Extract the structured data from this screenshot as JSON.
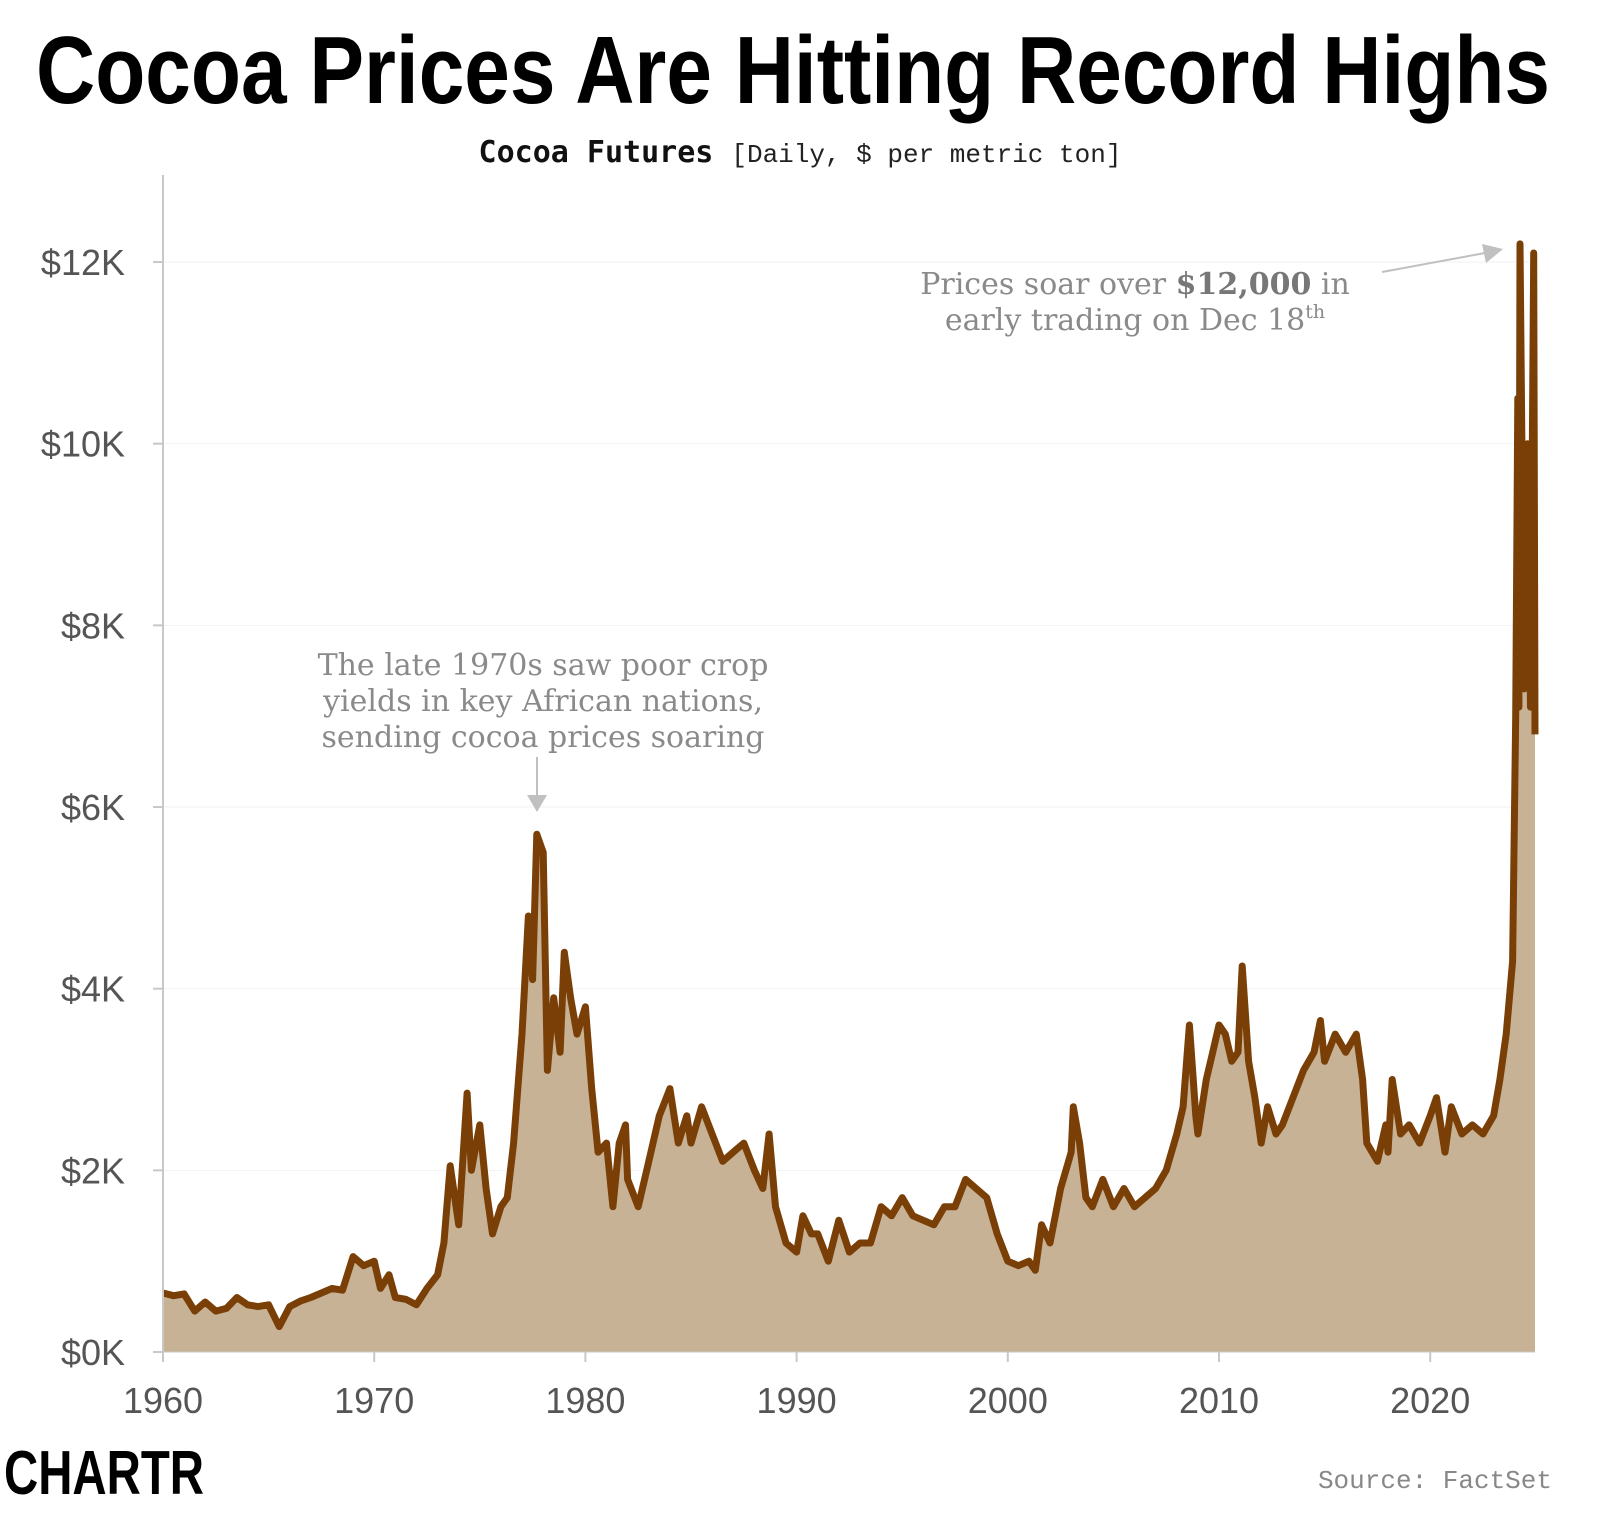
{
  "chart_data": {
    "type": "area",
    "title": "Cocoa Prices Are Hitting Record Highs",
    "subtitle_bold": "Cocoa Futures",
    "subtitle_rest": "[Daily, $ per metric ton]",
    "xlabel": "",
    "ylabel": "",
    "xlim": [
      1960,
      2024.96
    ],
    "ylim": [
      0,
      13000
    ],
    "x_ticks": [
      1960,
      1970,
      1980,
      1990,
      2000,
      2010,
      2020
    ],
    "x_tick_labels": [
      "1960",
      "1970",
      "1980",
      "1990",
      "2000",
      "2010",
      "2020"
    ],
    "y_ticks": [
      0,
      2000,
      4000,
      6000,
      8000,
      10000,
      12000
    ],
    "y_tick_labels": [
      "$0K",
      "$2K",
      "$4K",
      "$6K",
      "$8K",
      "$10K",
      "$12K"
    ],
    "grid": "horizontal",
    "colors": {
      "line": "#7a3f06",
      "fill": "#c8b296",
      "annotation": "#8a8a8a",
      "arrow": "#c0c0c0"
    },
    "points": [
      [
        1960,
        650
      ],
      [
        1960.5,
        620
      ],
      [
        1961,
        640
      ],
      [
        1961.5,
        450
      ],
      [
        1962,
        550
      ],
      [
        1962.5,
        450
      ],
      [
        1963,
        480
      ],
      [
        1963.5,
        600
      ],
      [
        1964,
        520
      ],
      [
        1964.5,
        500
      ],
      [
        1965,
        520
      ],
      [
        1965.5,
        280
      ],
      [
        1966,
        500
      ],
      [
        1966.5,
        560
      ],
      [
        1967,
        600
      ],
      [
        1967.5,
        650
      ],
      [
        1968,
        700
      ],
      [
        1968.5,
        680
      ],
      [
        1969,
        1050
      ],
      [
        1969.5,
        950
      ],
      [
        1970,
        1000
      ],
      [
        1970.3,
        700
      ],
      [
        1970.7,
        850
      ],
      [
        1971,
        600
      ],
      [
        1971.5,
        580
      ],
      [
        1972,
        520
      ],
      [
        1972.5,
        700
      ],
      [
        1973,
        850
      ],
      [
        1973.3,
        1200
      ],
      [
        1973.6,
        2050
      ],
      [
        1974,
        1400
      ],
      [
        1974.4,
        2850
      ],
      [
        1974.6,
        2000
      ],
      [
        1975,
        2500
      ],
      [
        1975.3,
        1800
      ],
      [
        1975.6,
        1300
      ],
      [
        1976,
        1600
      ],
      [
        1976.3,
        1700
      ],
      [
        1976.6,
        2300
      ],
      [
        1977,
        3500
      ],
      [
        1977.3,
        4800
      ],
      [
        1977.5,
        4100
      ],
      [
        1977.7,
        5700
      ],
      [
        1978,
        5500
      ],
      [
        1978.2,
        3100
      ],
      [
        1978.5,
        3900
      ],
      [
        1978.8,
        3300
      ],
      [
        1979,
        4400
      ],
      [
        1979.3,
        3900
      ],
      [
        1979.6,
        3500
      ],
      [
        1980,
        3800
      ],
      [
        1980.3,
        2900
      ],
      [
        1980.6,
        2200
      ],
      [
        1981,
        2300
      ],
      [
        1981.3,
        1600
      ],
      [
        1981.6,
        2300
      ],
      [
        1981.9,
        2500
      ],
      [
        1982,
        1900
      ],
      [
        1982.5,
        1600
      ],
      [
        1983,
        2100
      ],
      [
        1983.5,
        2600
      ],
      [
        1984,
        2900
      ],
      [
        1984.4,
        2300
      ],
      [
        1984.8,
        2600
      ],
      [
        1985,
        2300
      ],
      [
        1985.5,
        2700
      ],
      [
        1986,
        2400
      ],
      [
        1986.5,
        2100
      ],
      [
        1987,
        2200
      ],
      [
        1987.5,
        2300
      ],
      [
        1988,
        2000
      ],
      [
        1988.4,
        1800
      ],
      [
        1988.7,
        2400
      ],
      [
        1989,
        1600
      ],
      [
        1989.5,
        1200
      ],
      [
        1990,
        1100
      ],
      [
        1990.3,
        1500
      ],
      [
        1990.7,
        1300
      ],
      [
        1991,
        1300
      ],
      [
        1991.5,
        1000
      ],
      [
        1992,
        1450
      ],
      [
        1992.5,
        1100
      ],
      [
        1993,
        1200
      ],
      [
        1993.5,
        1200
      ],
      [
        1994,
        1600
      ],
      [
        1994.5,
        1500
      ],
      [
        1995,
        1700
      ],
      [
        1995.5,
        1500
      ],
      [
        1996,
        1450
      ],
      [
        1996.5,
        1400
      ],
      [
        1997,
        1600
      ],
      [
        1997.5,
        1600
      ],
      [
        1998,
        1900
      ],
      [
        1998.5,
        1800
      ],
      [
        1999,
        1700
      ],
      [
        1999.5,
        1300
      ],
      [
        2000,
        1000
      ],
      [
        2000.5,
        950
      ],
      [
        2001,
        1000
      ],
      [
        2001.3,
        900
      ],
      [
        2001.6,
        1400
      ],
      [
        2002,
        1200
      ],
      [
        2002.5,
        1800
      ],
      [
        2003,
        2200
      ],
      [
        2003.1,
        2700
      ],
      [
        2003.4,
        2300
      ],
      [
        2003.7,
        1700
      ],
      [
        2004,
        1600
      ],
      [
        2004.5,
        1900
      ],
      [
        2005,
        1600
      ],
      [
        2005.5,
        1800
      ],
      [
        2006,
        1600
      ],
      [
        2006.5,
        1700
      ],
      [
        2007,
        1800
      ],
      [
        2007.5,
        2000
      ],
      [
        2008,
        2400
      ],
      [
        2008.3,
        2700
      ],
      [
        2008.6,
        3600
      ],
      [
        2008.9,
        2600
      ],
      [
        2009,
        2400
      ],
      [
        2009.4,
        3000
      ],
      [
        2009.7,
        3300
      ],
      [
        2010,
        3600
      ],
      [
        2010.3,
        3500
      ],
      [
        2010.6,
        3200
      ],
      [
        2010.9,
        3300
      ],
      [
        2011.1,
        4250
      ],
      [
        2011.4,
        3200
      ],
      [
        2011.7,
        2800
      ],
      [
        2012,
        2300
      ],
      [
        2012.3,
        2700
      ],
      [
        2012.7,
        2400
      ],
      [
        2013,
        2500
      ],
      [
        2013.5,
        2800
      ],
      [
        2014,
        3100
      ],
      [
        2014.5,
        3300
      ],
      [
        2014.8,
        3650
      ],
      [
        2015,
        3200
      ],
      [
        2015.5,
        3500
      ],
      [
        2016,
        3300
      ],
      [
        2016.5,
        3500
      ],
      [
        2016.8,
        3000
      ],
      [
        2017,
        2300
      ],
      [
        2017.5,
        2100
      ],
      [
        2017.9,
        2500
      ],
      [
        2018,
        2200
      ],
      [
        2018.2,
        3000
      ],
      [
        2018.6,
        2400
      ],
      [
        2019,
        2500
      ],
      [
        2019.5,
        2300
      ],
      [
        2020,
        2600
      ],
      [
        2020.3,
        2800
      ],
      [
        2020.7,
        2200
      ],
      [
        2021,
        2700
      ],
      [
        2021.5,
        2400
      ],
      [
        2022,
        2500
      ],
      [
        2022.5,
        2400
      ],
      [
        2023,
        2600
      ],
      [
        2023.3,
        3000
      ],
      [
        2023.6,
        3500
      ],
      [
        2023.9,
        4300
      ],
      [
        2024.05,
        7000
      ],
      [
        2024.15,
        10500
      ],
      [
        2024.2,
        7100
      ],
      [
        2024.25,
        12200
      ],
      [
        2024.45,
        7300
      ],
      [
        2024.6,
        10000
      ],
      [
        2024.75,
        7100
      ],
      [
        2024.9,
        12100
      ],
      [
        2024.96,
        6800
      ]
    ],
    "annotations": [
      {
        "lines": [
          "The late 1970s saw poor crop",
          "yields in key African nations,",
          "sending cocoa prices soaring"
        ],
        "points_to": [
          1977.7,
          5700
        ]
      },
      {
        "line1_a": "Prices soar over ",
        "line1_b": "$12,000",
        "line1_c": " in",
        "line2_a": "early trading on Dec 18",
        "line2_sup": "th",
        "points_to": [
          2024.25,
          12200
        ]
      }
    ]
  },
  "footer": {
    "logo": "CHARTR",
    "source": "Source: FactSet"
  }
}
